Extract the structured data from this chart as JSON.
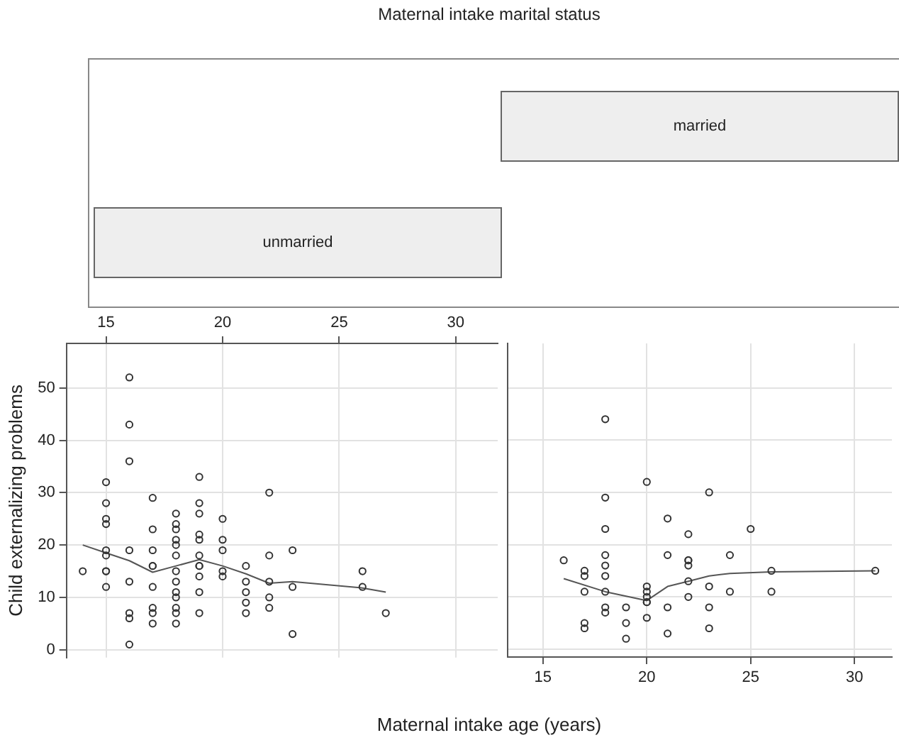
{
  "chart_data": [
    {
      "type": "other",
      "title": "Maternal intake marital status",
      "annotations": [
        "unmarried",
        "married"
      ]
    },
    {
      "type": "scatter",
      "ylabel": "Child externalizing problems",
      "xlim": [
        13.3,
        31.8
      ],
      "xticks": [
        15,
        20,
        25,
        30
      ],
      "ylim": [
        -1.5,
        58.5
      ],
      "yticks": [
        0,
        10,
        20,
        30,
        40,
        50
      ],
      "grid": true,
      "legend": false,
      "series": [
        {
          "type": "scatter",
          "marker": "circle",
          "color": "#333333",
          "x": [
            14,
            15,
            15,
            15,
            15,
            15,
            15,
            15,
            15,
            15,
            16,
            16,
            16,
            16,
            16,
            16,
            16,
            16,
            17,
            17,
            17,
            17,
            17,
            17,
            17,
            17,
            17,
            18,
            18,
            18,
            18,
            18,
            18,
            18,
            18,
            18,
            18,
            18,
            18,
            18,
            19,
            19,
            19,
            19,
            19,
            19,
            19,
            19,
            19,
            19,
            19,
            20,
            20,
            20,
            20,
            20,
            21,
            21,
            21,
            21,
            21,
            22,
            22,
            22,
            22,
            22,
            23,
            23,
            23,
            26,
            26,
            27
          ],
          "values": [
            15,
            32,
            28,
            25,
            24,
            19,
            18,
            15,
            15,
            12,
            52,
            43,
            36,
            19,
            13,
            7,
            6,
            1,
            29,
            23,
            19,
            16,
            16,
            12,
            8,
            7,
            5,
            26,
            24,
            23,
            21,
            20,
            18,
            15,
            13,
            11,
            10,
            8,
            7,
            5,
            33,
            28,
            26,
            22,
            21,
            18,
            16,
            16,
            14,
            11,
            7,
            25,
            21,
            19,
            15,
            14,
            16,
            13,
            11,
            9,
            7,
            30,
            18,
            13,
            10,
            8,
            19,
            12,
            3,
            15,
            12,
            7
          ]
        },
        {
          "type": "line",
          "marker": "none",
          "line_style": "solid",
          "color": "#555555",
          "x": [
            14,
            15,
            16,
            17,
            18,
            19,
            20,
            21,
            22,
            23,
            26,
            27
          ],
          "values": [
            20,
            18.5,
            17,
            14.8,
            16,
            17.2,
            16,
            14.5,
            12.7,
            13,
            11.8,
            11
          ]
        }
      ]
    },
    {
      "type": "scatter",
      "xlabel": "Maternal intake age (years)",
      "xlim": [
        13.3,
        31.8
      ],
      "xticks": [
        15,
        20,
        25,
        30
      ],
      "ylim": [
        -1.5,
        58.5
      ],
      "yticks": [
        0,
        10,
        20,
        30,
        40,
        50
      ],
      "tick_labels": "x",
      "grid": true,
      "legend": false,
      "series": [
        {
          "type": "scatter",
          "marker": "circle",
          "color": "#333333",
          "x": [
            16,
            17,
            17,
            17,
            17,
            17,
            18,
            18,
            18,
            18,
            18,
            18,
            18,
            18,
            18,
            19,
            19,
            19,
            20,
            20,
            20,
            20,
            20,
            20,
            20,
            21,
            21,
            21,
            21,
            22,
            22,
            22,
            22,
            22,
            22,
            23,
            23,
            23,
            23,
            24,
            24,
            25,
            26,
            26,
            31
          ],
          "values": [
            17,
            15,
            14,
            11,
            5,
            4,
            44,
            29,
            23,
            18,
            16,
            14,
            11,
            8,
            7,
            8,
            5,
            2,
            32,
            12,
            11,
            10,
            9,
            9,
            6,
            25,
            18,
            8,
            3,
            22,
            17,
            17,
            16,
            13,
            10,
            30,
            12,
            8,
            4,
            18,
            11,
            23,
            15,
            11,
            15
          ]
        },
        {
          "type": "line",
          "marker": "none",
          "line_style": "solid",
          "color": "#555555",
          "x": [
            16,
            18,
            20,
            21,
            22,
            23,
            24,
            26,
            31
          ],
          "values": [
            13.5,
            11,
            9.3,
            12,
            13,
            14,
            14.5,
            14.8,
            15
          ]
        }
      ]
    }
  ]
}
